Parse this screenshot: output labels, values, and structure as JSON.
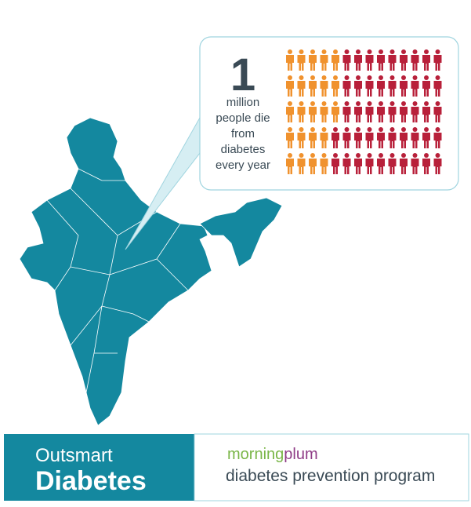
{
  "callout": {
    "number": "1",
    "lines": [
      "million",
      "people die",
      "from",
      "diabetes",
      "every year"
    ]
  },
  "footer": {
    "title_line1": "Outsmart",
    "title_line2": "Diabetes",
    "brand_part1": "morning",
    "brand_part2": "plum",
    "tagline": "diabetes prevention program"
  }
}
